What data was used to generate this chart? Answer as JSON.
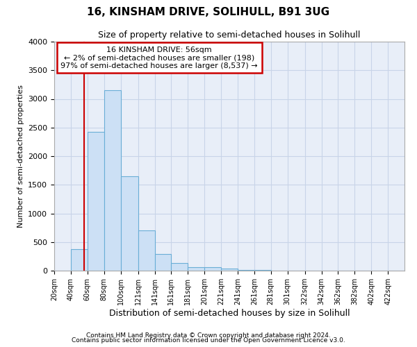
{
  "title": "16, KINSHAM DRIVE, SOLIHULL, B91 3UG",
  "subtitle": "Size of property relative to semi-detached houses in Solihull",
  "xlabel": "Distribution of semi-detached houses by size in Solihull",
  "ylabel": "Number of semi-detached properties",
  "footer1": "Contains HM Land Registry data © Crown copyright and database right 2024.",
  "footer2": "Contains public sector information licensed under the Open Government Licence v3.0.",
  "bin_labels": [
    "20sqm",
    "40sqm",
    "60sqm",
    "80sqm",
    "100sqm",
    "121sqm",
    "141sqm",
    "161sqm",
    "181sqm",
    "201sqm",
    "221sqm",
    "241sqm",
    "261sqm",
    "281sqm",
    "301sqm",
    "322sqm",
    "342sqm",
    "362sqm",
    "382sqm",
    "402sqm",
    "422sqm"
  ],
  "bin_edges": [
    20,
    40,
    60,
    80,
    100,
    121,
    141,
    161,
    181,
    201,
    221,
    241,
    261,
    281,
    301,
    322,
    342,
    362,
    382,
    402,
    422,
    442
  ],
  "bar_values": [
    5,
    380,
    2420,
    3150,
    1650,
    700,
    290,
    130,
    65,
    55,
    35,
    15,
    8,
    5,
    3,
    2,
    1,
    1,
    0,
    0,
    0
  ],
  "bar_color": "#cce0f5",
  "bar_edge_color": "#6aaed6",
  "grid_color": "#c8d4e8",
  "background_color": "#e8eef8",
  "vline_x": 56,
  "vline_color": "#cc0000",
  "annotation_line1": "16 KINSHAM DRIVE: 56sqm",
  "annotation_line2": "← 2% of semi-detached houses are smaller (198)",
  "annotation_line3": "97% of semi-detached houses are larger (8,537) →",
  "annotation_box_color": "#cc0000",
  "ylim": [
    0,
    4000
  ],
  "yticks": [
    0,
    500,
    1000,
    1500,
    2000,
    2500,
    3000,
    3500,
    4000
  ]
}
